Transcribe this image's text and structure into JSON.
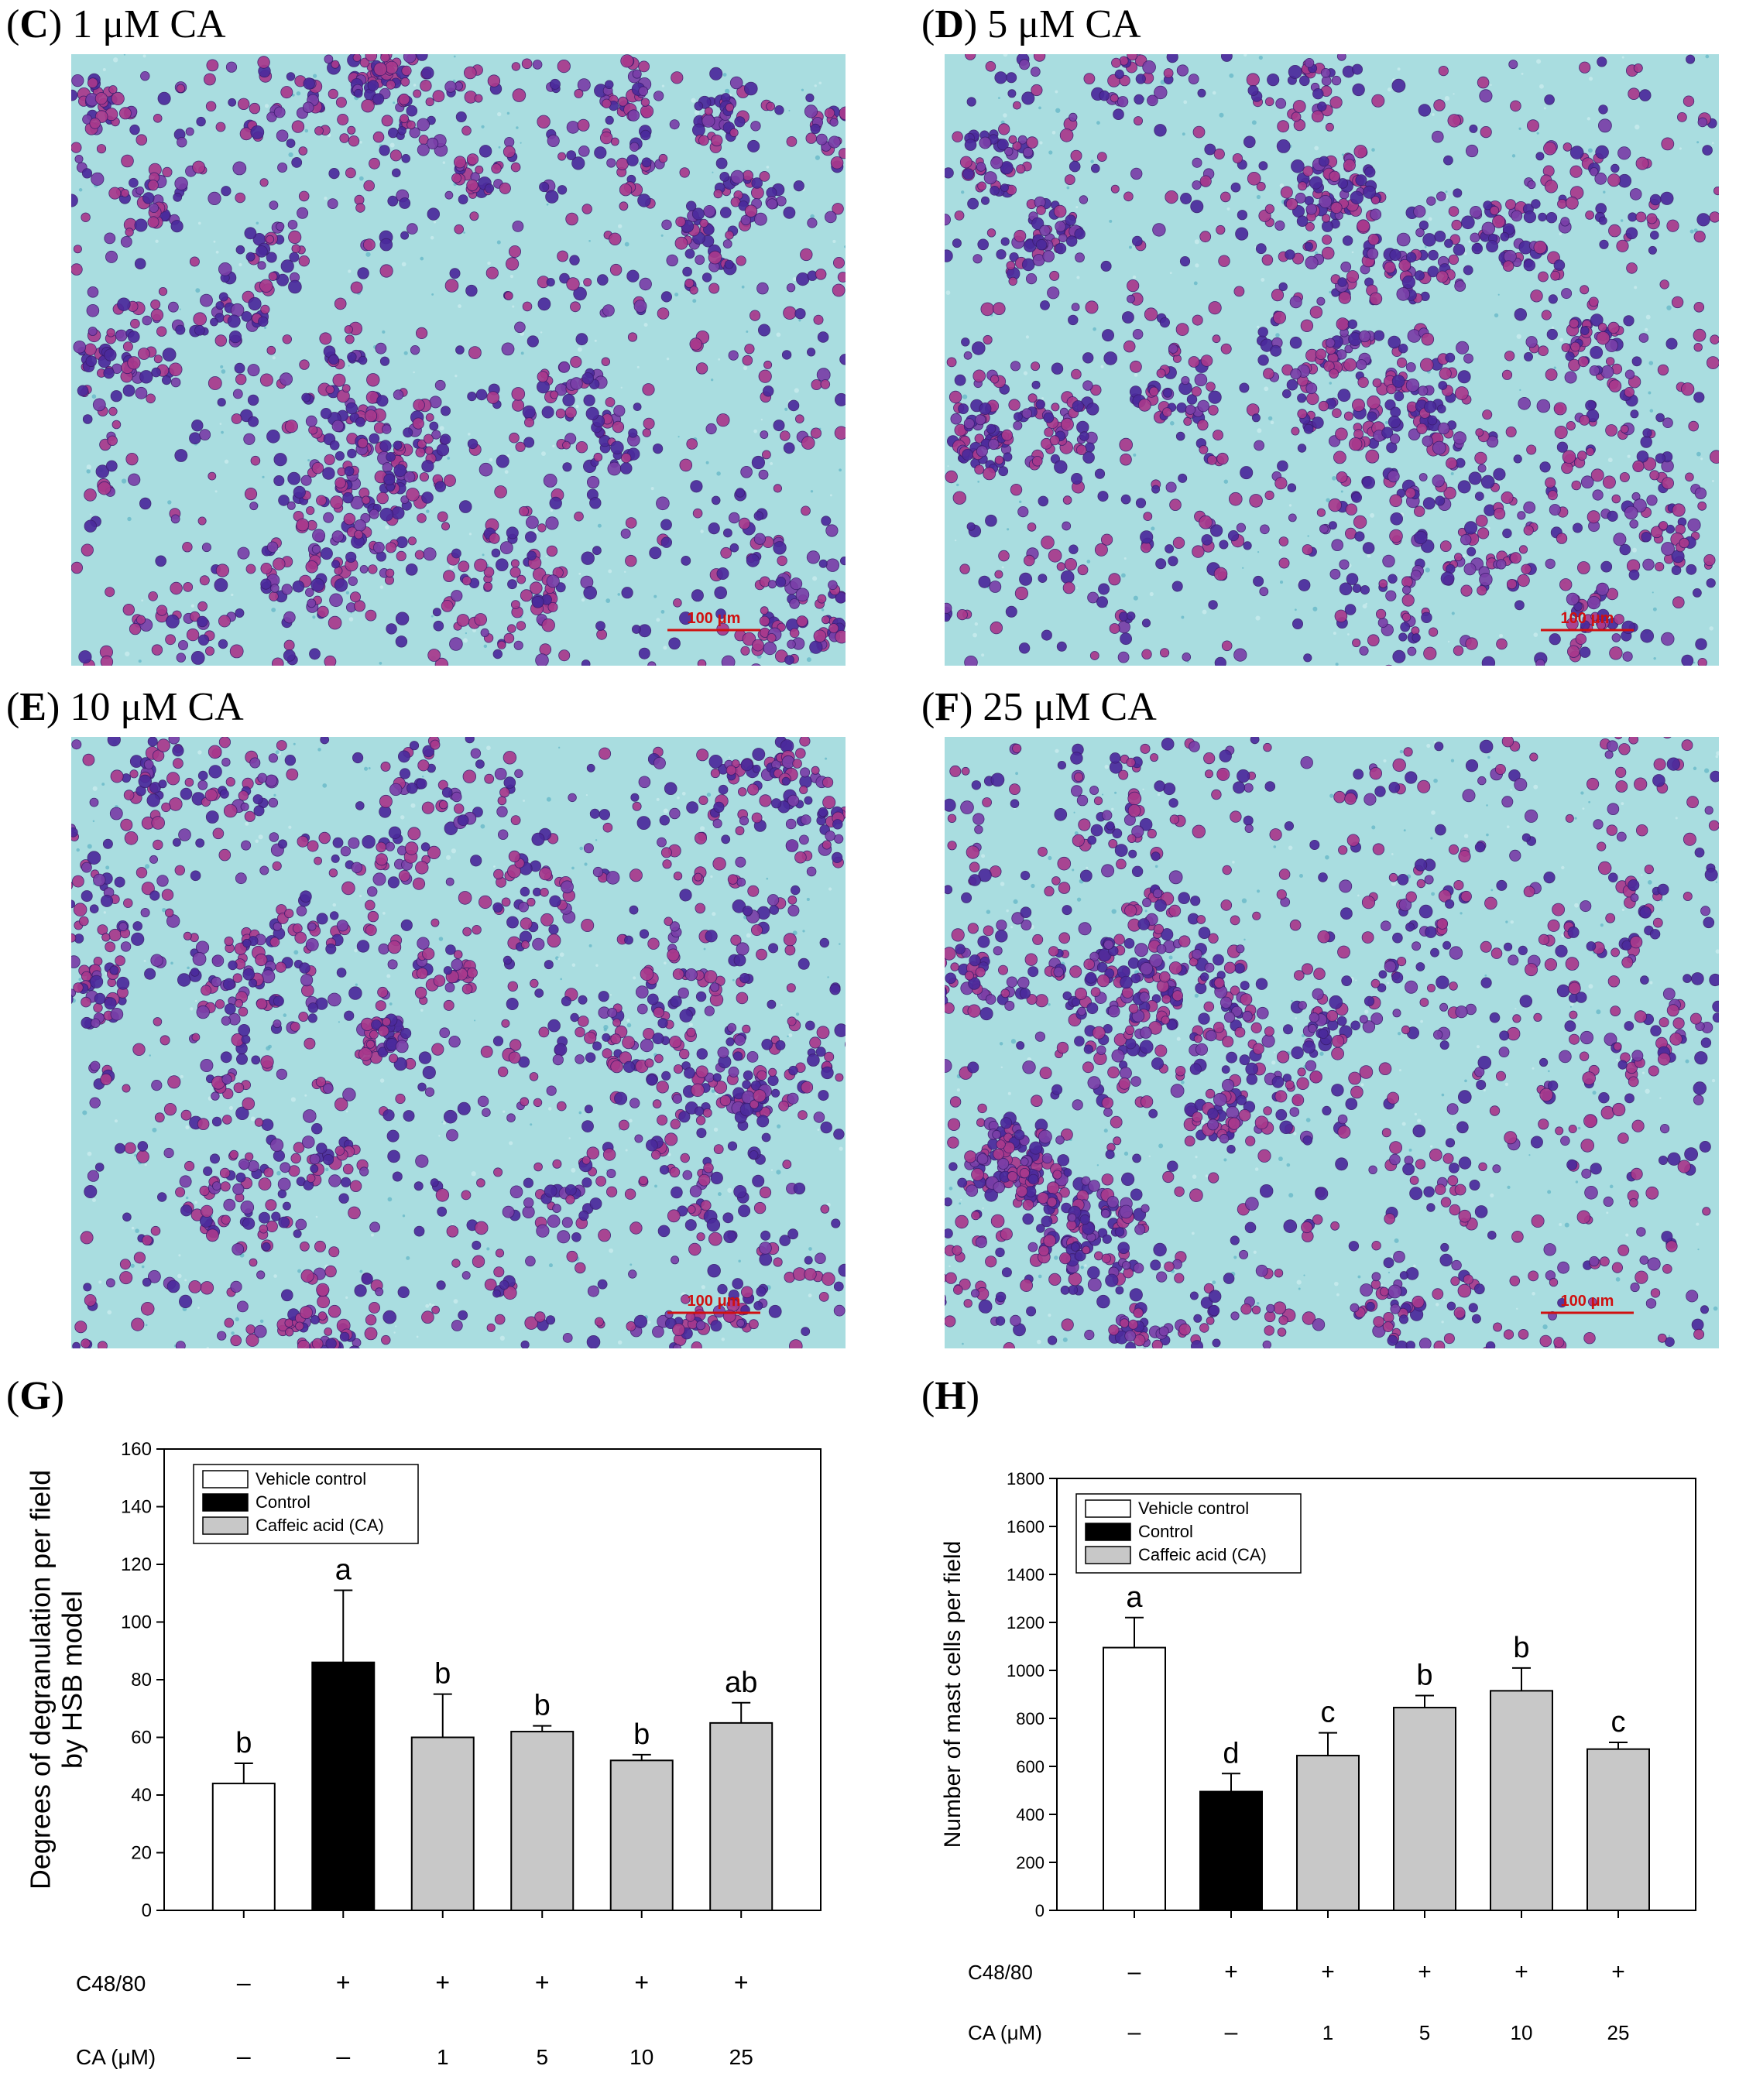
{
  "panels": {
    "C": {
      "letter": "C",
      "caption": "1 μM CA",
      "scale_bar": "100 μm"
    },
    "D": {
      "letter": "D",
      "caption": "5 μM CA",
      "scale_bar": "100 μm"
    },
    "E": {
      "letter": "E",
      "caption": "10 μM CA",
      "scale_bar": "100 μm"
    },
    "F": {
      "letter": "F",
      "caption": "25 μM CA",
      "scale_bar": "100 μm"
    },
    "G": {
      "letter": "G"
    },
    "H": {
      "letter": "H"
    }
  },
  "colors": {
    "background_cyan": "#a9dde0",
    "cell_magenta": "#a8398c",
    "cell_purple": "#4b2a9c",
    "cell_violet": "#7a3fa8",
    "scale_red": "#d01010",
    "vehicle": "#ffffff",
    "control": "#000000",
    "ca": "#c8c8c8"
  },
  "chart_data": [
    {
      "id": "G",
      "type": "bar",
      "ylabel": "Degrees of degranulation per field by HSB model",
      "ylabel_lines": [
        "Degrees of degranulation per field",
        "by HSB model"
      ],
      "ylim": [
        0,
        160
      ],
      "yticks": [
        0,
        20,
        40,
        60,
        80,
        100,
        120,
        140,
        160
      ],
      "legend": [
        {
          "name": "Vehicle control",
          "color": "#ffffff"
        },
        {
          "name": "Control",
          "color": "#000000"
        },
        {
          "name": "Caffeic acid (CA)",
          "color": "#c8c8c8"
        }
      ],
      "legend_placement": "top-left",
      "bars": [
        {
          "value": 44,
          "error": 7,
          "group": "Vehicle control",
          "letter": "b"
        },
        {
          "value": 86,
          "error": 25,
          "group": "Control",
          "letter": "a"
        },
        {
          "value": 60,
          "error": 15,
          "group": "Caffeic acid (CA)",
          "letter": "b"
        },
        {
          "value": 62,
          "error": 2,
          "group": "Caffeic acid (CA)",
          "letter": "b"
        },
        {
          "value": 52,
          "error": 2,
          "group": "Caffeic acid (CA)",
          "letter": "b"
        },
        {
          "value": 65,
          "error": 7,
          "group": "Caffeic acid (CA)",
          "letter": "ab"
        }
      ],
      "rows": [
        {
          "label": "C48/80",
          "values": [
            "–",
            "+",
            "+",
            "+",
            "+",
            "+"
          ]
        },
        {
          "label": "CA (μM)",
          "values": [
            "–",
            "–",
            "1",
            "5",
            "10",
            "25"
          ]
        }
      ]
    },
    {
      "id": "H",
      "type": "bar",
      "ylabel": "Number of mast cells per field",
      "ylabel_lines": [
        "Number of mast cells per field"
      ],
      "ylim": [
        0,
        1800
      ],
      "yticks": [
        0,
        200,
        400,
        600,
        800,
        1000,
        1200,
        1400,
        1600,
        1800
      ],
      "legend": [
        {
          "name": "Vehicle control",
          "color": "#ffffff"
        },
        {
          "name": "Control",
          "color": "#000000"
        },
        {
          "name": "Caffeic acid (CA)",
          "color": "#c8c8c8"
        }
      ],
      "legend_placement": "top-left",
      "bars": [
        {
          "value": 1095,
          "error": 125,
          "group": "Vehicle control",
          "letter": "a"
        },
        {
          "value": 495,
          "error": 75,
          "group": "Control",
          "letter": "d"
        },
        {
          "value": 645,
          "error": 95,
          "group": "Caffeic acid (CA)",
          "letter": "c"
        },
        {
          "value": 845,
          "error": 50,
          "group": "Caffeic acid (CA)",
          "letter": "b"
        },
        {
          "value": 915,
          "error": 95,
          "group": "Caffeic acid (CA)",
          "letter": "b"
        },
        {
          "value": 672,
          "error": 28,
          "group": "Caffeic acid (CA)",
          "letter": "c"
        }
      ],
      "rows": [
        {
          "label": "C48/80",
          "values": [
            "–",
            "+",
            "+",
            "+",
            "+",
            "+"
          ]
        },
        {
          "label": "CA (μM)",
          "values": [
            "–",
            "–",
            "1",
            "5",
            "10",
            "25"
          ]
        }
      ]
    }
  ]
}
